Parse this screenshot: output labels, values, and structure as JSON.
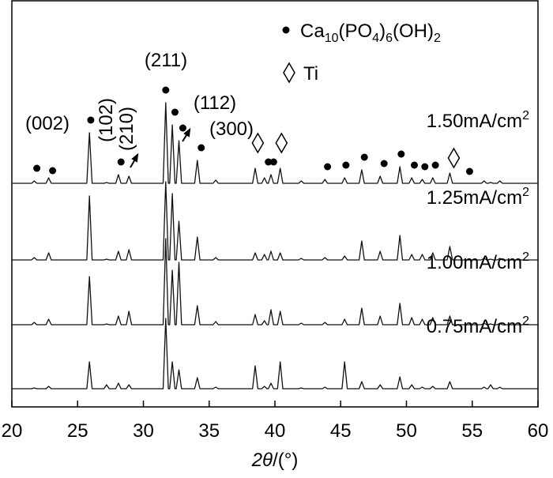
{
  "chart_data": {
    "type": "line",
    "x_label": "2θ/(°)",
    "xlim": [
      20,
      60
    ],
    "xticks": [
      20,
      25,
      30,
      35,
      40,
      45,
      50,
      55,
      60
    ],
    "annotations": [
      "(002)",
      "(102)",
      "(210)",
      "(211)",
      "(112)",
      "(300)"
    ],
    "phases": [
      {
        "name": "Ca10(PO4)6(OH)2",
        "marker": "dot",
        "positions": [
          21.9,
          23.1,
          26.0,
          28.3,
          31.7,
          32.4,
          33.0,
          34.4,
          39.5,
          39.9,
          44.0,
          45.4,
          46.8,
          48.3,
          49.6,
          50.6,
          51.4,
          52.2,
          54.8
        ]
      },
      {
        "name": "Ti",
        "marker": "diamond",
        "positions": [
          38.7,
          40.5,
          53.6
        ]
      }
    ],
    "x": [
      20,
      21.5,
      21.7,
      21.9,
      22.6,
      22.8,
      23.0,
      25.7,
      25.9,
      26.1,
      27.0,
      27.2,
      27.4,
      27.9,
      28.1,
      28.3,
      28.7,
      28.9,
      29.1,
      31.5,
      31.7,
      31.9,
      32.0,
      32.2,
      32.4,
      32.5,
      32.7,
      32.9,
      33.9,
      34.1,
      34.3,
      35.3,
      35.5,
      35.7,
      38.3,
      38.5,
      38.7,
      39.0,
      39.2,
      39.4,
      39.5,
      39.7,
      39.9,
      40.2,
      40.4,
      40.6,
      41.8,
      42.0,
      42.2,
      43.6,
      43.8,
      44.0,
      45.1,
      45.3,
      45.5,
      46.4,
      46.6,
      46.8,
      47.8,
      48.0,
      48.2,
      49.3,
      49.5,
      49.7,
      50.2,
      50.4,
      50.6,
      51.0,
      51.2,
      51.4,
      51.8,
      52.0,
      52.2,
      53.1,
      53.3,
      53.5,
      55.7,
      55.9,
      56.1,
      56.2,
      56.4,
      56.6,
      56.9,
      57.1,
      57.3,
      60
    ],
    "series": [
      {
        "name": "1.50mA/cm2",
        "color": "#111111",
        "values": [
          1,
          1,
          4,
          1,
          1,
          8,
          1,
          1,
          65,
          1,
          1,
          2,
          1,
          1,
          12,
          1,
          1,
          10,
          1,
          1,
          103,
          1,
          1,
          75,
          1,
          1,
          55,
          1,
          1,
          30,
          1,
          1,
          5,
          1,
          1,
          20,
          1,
          1,
          8,
          1,
          1,
          12,
          1,
          1,
          20,
          1,
          1,
          4,
          1,
          1,
          6,
          1,
          1,
          8,
          1,
          1,
          18,
          1,
          1,
          10,
          1,
          1,
          22,
          1,
          1,
          8,
          1,
          1,
          6,
          1,
          1,
          8,
          1,
          1,
          14,
          1,
          1,
          4,
          1,
          1,
          2,
          1,
          1,
          4,
          1,
          1
        ]
      },
      {
        "name": "1.25mA/cm2",
        "color": "#111111",
        "values": [
          1,
          1,
          4,
          1,
          1,
          10,
          1,
          1,
          82,
          1,
          1,
          2,
          1,
          1,
          12,
          1,
          1,
          14,
          1,
          1,
          100,
          1,
          1,
          85,
          1,
          1,
          50,
          1,
          1,
          30,
          1,
          1,
          4,
          1,
          1,
          10,
          1,
          1,
          8,
          1,
          1,
          12,
          1,
          1,
          10,
          1,
          1,
          3,
          1,
          1,
          4,
          1,
          1,
          6,
          1,
          1,
          25,
          1,
          1,
          12,
          1,
          1,
          32,
          1,
          1,
          8,
          1,
          1,
          8,
          1,
          1,
          10,
          1,
          1,
          18,
          1,
          1,
          3,
          1,
          1,
          2,
          1,
          1,
          3,
          1,
          1
        ]
      },
      {
        "name": "1.00mA/cm2",
        "color": "#111111",
        "values": [
          1,
          1,
          4,
          1,
          1,
          8,
          1,
          1,
          62,
          1,
          1,
          2,
          1,
          1,
          12,
          1,
          1,
          18,
          1,
          1,
          110,
          1,
          1,
          70,
          1,
          1,
          80,
          1,
          1,
          25,
          1,
          1,
          5,
          1,
          1,
          14,
          1,
          1,
          6,
          1,
          1,
          20,
          1,
          1,
          18,
          1,
          1,
          3,
          1,
          1,
          4,
          1,
          1,
          8,
          1,
          1,
          22,
          1,
          1,
          12,
          1,
          1,
          28,
          1,
          1,
          10,
          1,
          1,
          8,
          1,
          1,
          10,
          1,
          1,
          12,
          1,
          1,
          3,
          1,
          1,
          2,
          1,
          1,
          3,
          1,
          1
        ]
      },
      {
        "name": "0.75mA/cm2",
        "color": "#111111",
        "values": [
          1,
          1,
          2,
          1,
          1,
          4,
          1,
          1,
          35,
          1,
          1,
          6,
          1,
          1,
          8,
          1,
          1,
          6,
          1,
          1,
          90,
          1,
          1,
          35,
          1,
          1,
          25,
          1,
          1,
          15,
          1,
          1,
          3,
          1,
          1,
          30,
          1,
          1,
          4,
          1,
          1,
          8,
          1,
          1,
          35,
          1,
          1,
          2,
          1,
          1,
          3,
          1,
          1,
          35,
          1,
          1,
          10,
          1,
          1,
          6,
          1,
          1,
          16,
          1,
          1,
          6,
          1,
          1,
          3,
          1,
          1,
          4,
          1,
          1,
          10,
          1,
          1,
          3,
          1,
          1,
          6,
          1,
          1,
          3,
          1,
          1
        ]
      }
    ]
  }
}
